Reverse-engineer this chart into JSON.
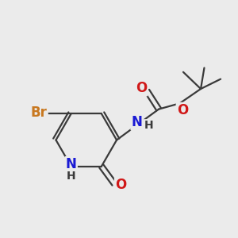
{
  "bg_color": "#ebebeb",
  "bond_color": "#3a3a3a",
  "bond_width": 1.6,
  "atom_colors": {
    "Br": "#c87820",
    "N": "#1a1ad4",
    "O": "#d01818",
    "C": "#3a3a3a",
    "H": "#3a3a3a"
  },
  "font_size_atom": 12,
  "font_size_H": 10
}
